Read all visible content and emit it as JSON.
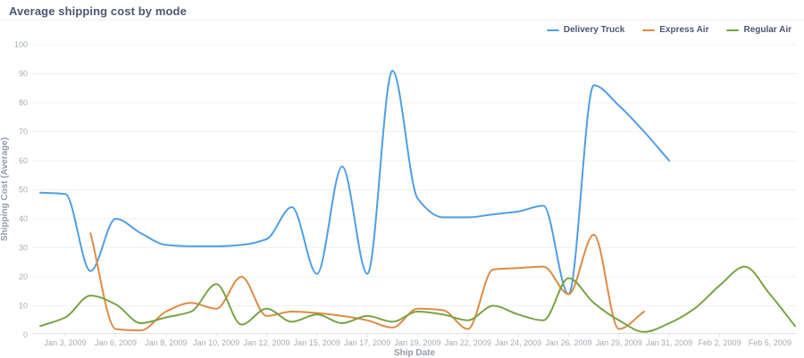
{
  "header": {
    "title": "Average shipping cost by mode"
  },
  "legend": {
    "position": "top-right",
    "items": [
      {
        "label": "Delivery Truck",
        "color": "#509ee3"
      },
      {
        "label": "Express Air",
        "color": "#dd8b45"
      },
      {
        "label": "Regular Air",
        "color": "#7ba245"
      }
    ]
  },
  "chart_data": {
    "type": "line",
    "title": "Average shipping cost by mode",
    "xlabel": "Ship Date",
    "ylabel": "Shipping Cost (Average)",
    "ylim": [
      0,
      100
    ],
    "y_ticks": [
      0,
      10,
      20,
      30,
      40,
      50,
      60,
      70,
      80,
      90,
      100
    ],
    "grid": true,
    "curve": "smooth-monotone",
    "legend_position": "top-right",
    "x_tick_labels": [
      "Jan 3, 2009",
      "Jan 6, 2009",
      "Jan 8, 2009",
      "Jan 10, 2009",
      "Jan 12, 2009",
      "Jan 15, 2009",
      "Jan 17, 2009",
      "Jan 19, 2009",
      "Jan 22, 2009",
      "Jan 24, 2009",
      "Jan 26, 2009",
      "Jan 29, 2009",
      "Jan 31, 2009",
      "Feb 2, 2009",
      "Feb 5, 2009"
    ],
    "x": [
      "",
      "Jan 3, 2009",
      "",
      "Jan 6, 2009",
      "",
      "Jan 8, 2009",
      "",
      "Jan 10, 2009",
      "",
      "Jan 12, 2009",
      "",
      "Jan 15, 2009",
      "",
      "Jan 17, 2009",
      "",
      "Jan 19, 2009",
      "",
      "Jan 22, 2009",
      "",
      "Jan 24, 2009",
      "",
      "Jan 26, 2009",
      "",
      "Jan 29, 2009",
      "",
      "Jan 31, 2009",
      "",
      "Feb 2, 2009",
      "",
      "Feb 5, 2009",
      ""
    ],
    "series": [
      {
        "name": "Delivery Truck",
        "color": "#509ee3",
        "values": [
          49,
          48.5,
          22,
          40,
          35,
          31,
          30.5,
          30.5,
          31,
          33,
          44,
          21,
          58,
          21,
          91,
          47,
          40.5,
          40.5,
          41.5,
          42.5,
          44.5,
          14,
          86,
          79,
          70,
          60,
          null,
          null,
          null,
          null,
          null
        ]
      },
      {
        "name": "Express Air",
        "color": "#dd8b45",
        "values": [
          null,
          null,
          35,
          2,
          1.5,
          8,
          11,
          9,
          20,
          6.5,
          8,
          7.5,
          6.5,
          5,
          2.5,
          9,
          8.5,
          2,
          22.5,
          23,
          23.5,
          14,
          34.5,
          2,
          8,
          null,
          null,
          null,
          null,
          null,
          null
        ]
      },
      {
        "name": "Regular Air",
        "color": "#7ba245",
        "values": [
          3,
          6,
          13.5,
          10.5,
          4,
          6,
          8,
          17.5,
          3.5,
          9,
          4.5,
          7,
          4,
          6.5,
          4.5,
          8,
          7,
          5,
          10,
          7,
          5,
          19.5,
          11,
          5,
          1,
          4,
          9,
          17,
          23.5,
          14,
          3
        ]
      }
    ]
  },
  "colors": {
    "grid": "#f0f0f0",
    "axis_line": "#e2e2e2",
    "tick_text": "#a6abb3",
    "axis_title_text": "#949aab",
    "title_text": "#4c5773"
  }
}
